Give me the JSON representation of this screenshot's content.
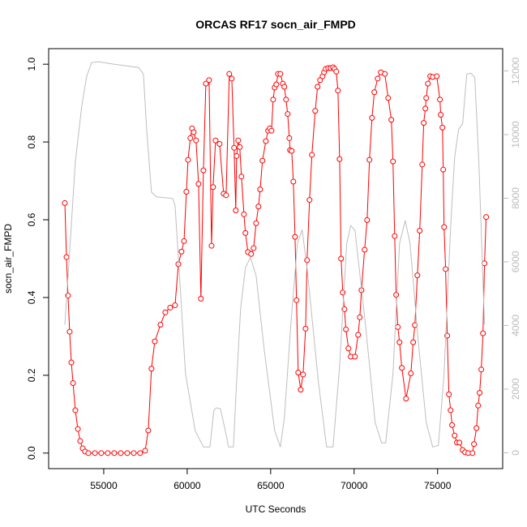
{
  "chart_data": {
    "type": "line",
    "title": "ORCAS RF17 socn_air_FMPD",
    "xlabel": "UTC Seconds",
    "ylabel": "socn_air_FMPD",
    "xlim": [
      51700,
      78900
    ],
    "xticks": [
      55000,
      60000,
      65000,
      70000,
      75000
    ],
    "ylim": [
      -0.04,
      1.04
    ],
    "yticks": [
      {
        "value": 0,
        "label": "0.0"
      },
      0.2,
      0.4,
      0.6,
      0.8,
      {
        "value": 1,
        "label": "1.0"
      }
    ],
    "y2lim": [
      -500,
      12700
    ],
    "y2ticks": [
      0,
      2000,
      4000,
      6000,
      8000,
      10000,
      12000
    ],
    "y2color": "#bbbbbb",
    "series": [
      {
        "color": "#ff0000",
        "marker": "circle",
        "x": [
          52670,
          52770,
          52860,
          52960,
          53060,
          53160,
          53300,
          53450,
          53590,
          53740,
          53880,
          54080,
          54470,
          54850,
          55240,
          55630,
          56020,
          56410,
          56800,
          57180,
          57480,
          57670,
          57860,
          58060,
          58400,
          58690,
          58980,
          59270,
          59470,
          59660,
          59810,
          59950,
          60050,
          60190,
          60290,
          60390,
          60530,
          60680,
          60820,
          60970,
          61120,
          61310,
          61460,
          61550,
          61700,
          61940,
          62180,
          62330,
          62520,
          62670,
          62810,
          62910,
          62960,
          63060,
          63150,
          63250,
          63400,
          63490,
          63640,
          63830,
          63980,
          64130,
          64270,
          64370,
          64510,
          64710,
          64850,
          64950,
          65050,
          65150,
          65240,
          65340,
          65440,
          65580,
          65730,
          65820,
          65920,
          66020,
          66120,
          66160,
          66260,
          66360,
          66460,
          66550,
          66650,
          66800,
          66940,
          67090,
          67180,
          67330,
          67470,
          67670,
          67810,
          67960,
          68110,
          68200,
          68300,
          68450,
          68590,
          68740,
          68830,
          68930,
          69030,
          69130,
          69220,
          69320,
          69420,
          69510,
          69660,
          69800,
          70050,
          70240,
          70340,
          70440,
          70630,
          70780,
          70920,
          71070,
          71210,
          71410,
          71600,
          71840,
          72040,
          72230,
          72330,
          72430,
          72520,
          72620,
          72720,
          72860,
          73110,
          73400,
          73540,
          73640,
          73790,
          73930,
          74080,
          74170,
          74270,
          74320,
          74420,
          74560,
          74710,
          74950,
          75140,
          75190,
          75290,
          75340,
          75390,
          75480,
          75580,
          75680,
          75780,
          75870,
          76020,
          76160,
          76310,
          76500,
          76650,
          76840,
          77090,
          77180,
          77330,
          77430,
          77520,
          77620,
          77720,
          77810,
          77910
        ],
        "values": [
          0.643,
          0.504,
          0.405,
          0.312,
          0.233,
          0.18,
          0.11,
          0.062,
          0.031,
          0.012,
          0.004,
          0,
          0,
          0,
          0,
          0,
          0,
          0,
          0,
          0,
          0.006,
          0.058,
          0.217,
          0.287,
          0.33,
          0.362,
          0.374,
          0.38,
          0.486,
          0.518,
          0.545,
          0.672,
          0.754,
          0.81,
          0.835,
          0.825,
          0.804,
          0.692,
          0.397,
          0.727,
          0.95,
          0.959,
          0.533,
          0.684,
          0.804,
          0.795,
          0.667,
          0.663,
          0.975,
          0.963,
          0.785,
          0.624,
          0.764,
          0.804,
          0.787,
          0.711,
          0.614,
          0.566,
          0.517,
          0.512,
          0.527,
          0.591,
          0.634,
          0.678,
          0.752,
          0.802,
          0.829,
          0.835,
          0.829,
          0.909,
          0.94,
          0.948,
          0.975,
          0.975,
          0.95,
          0.942,
          0.909,
          0.872,
          0.81,
          0.779,
          0.777,
          0.698,
          0.556,
          0.393,
          0.207,
          0.163,
          0.202,
          0.32,
          0.496,
          0.651,
          0.767,
          0.88,
          0.942,
          0.959,
          0.969,
          0.979,
          0.988,
          0.99,
          0.99,
          0.992,
          0.988,
          0.981,
          0.932,
          0.756,
          0.5,
          0.413,
          0.37,
          0.318,
          0.269,
          0.248,
          0.248,
          0.304,
          0.349,
          0.419,
          0.523,
          0.599,
          0.754,
          0.862,
          0.928,
          0.963,
          0.979,
          0.975,
          0.913,
          0.857,
          0.75,
          0.558,
          0.407,
          0.324,
          0.285,
          0.219,
          0.14,
          0.205,
          0.285,
          0.329,
          0.457,
          0.572,
          0.742,
          0.849,
          0.886,
          0.913,
          0.95,
          0.969,
          0.967,
          0.969,
          0.909,
          0.87,
          0.837,
          0.729,
          0.581,
          0.473,
          0.302,
          0.151,
          0.11,
          0.072,
          0.045,
          0.027,
          0.027,
          0.008,
          0.002,
          0,
          0,
          0.023,
          0.064,
          0.122,
          0.155,
          0.215,
          0.308,
          0.488,
          0.607
        ]
      },
      {
        "color": "#bebebe",
        "axis": "y2",
        "x": [
          52670,
          52960,
          53300,
          53690,
          53980,
          54270,
          54660,
          55630,
          57090,
          57380,
          57570,
          57860,
          58160,
          59130,
          59270,
          59510,
          59900,
          60480,
          60970,
          61360,
          61600,
          61750,
          61990,
          62230,
          62480,
          62770,
          62960,
          63200,
          63490,
          63790,
          64130,
          64610,
          65240,
          65580,
          65820,
          66210,
          66600,
          66890,
          67180,
          67860,
          68350,
          68740,
          69130,
          69560,
          69800,
          70050,
          70680,
          71260,
          71650,
          71890,
          72330,
          72720,
          73060,
          73350,
          73840,
          74320,
          74710,
          75050,
          75390,
          75780,
          76020,
          76260,
          76500,
          76750,
          76990,
          77230,
          77470,
          77810
        ],
        "values": [
          4020,
          6320,
          9140,
          10930,
          11830,
          12260,
          12290,
          12210,
          12110,
          11900,
          10160,
          8190,
          8040,
          7990,
          7780,
          5810,
          2480,
          690,
          180,
          180,
          1330,
          1410,
          1380,
          820,
          180,
          180,
          2230,
          4530,
          5810,
          6140,
          5560,
          3250,
          690,
          180,
          1080,
          4020,
          6580,
          7010,
          5810,
          2230,
          180,
          180,
          2740,
          6580,
          7140,
          6990,
          4020,
          950,
          310,
          310,
          2480,
          6580,
          7300,
          6580,
          3510,
          950,
          180,
          230,
          2480,
          7090,
          9270,
          10160,
          10340,
          11900,
          11930,
          11800,
          9140,
          4020
        ]
      }
    ]
  }
}
